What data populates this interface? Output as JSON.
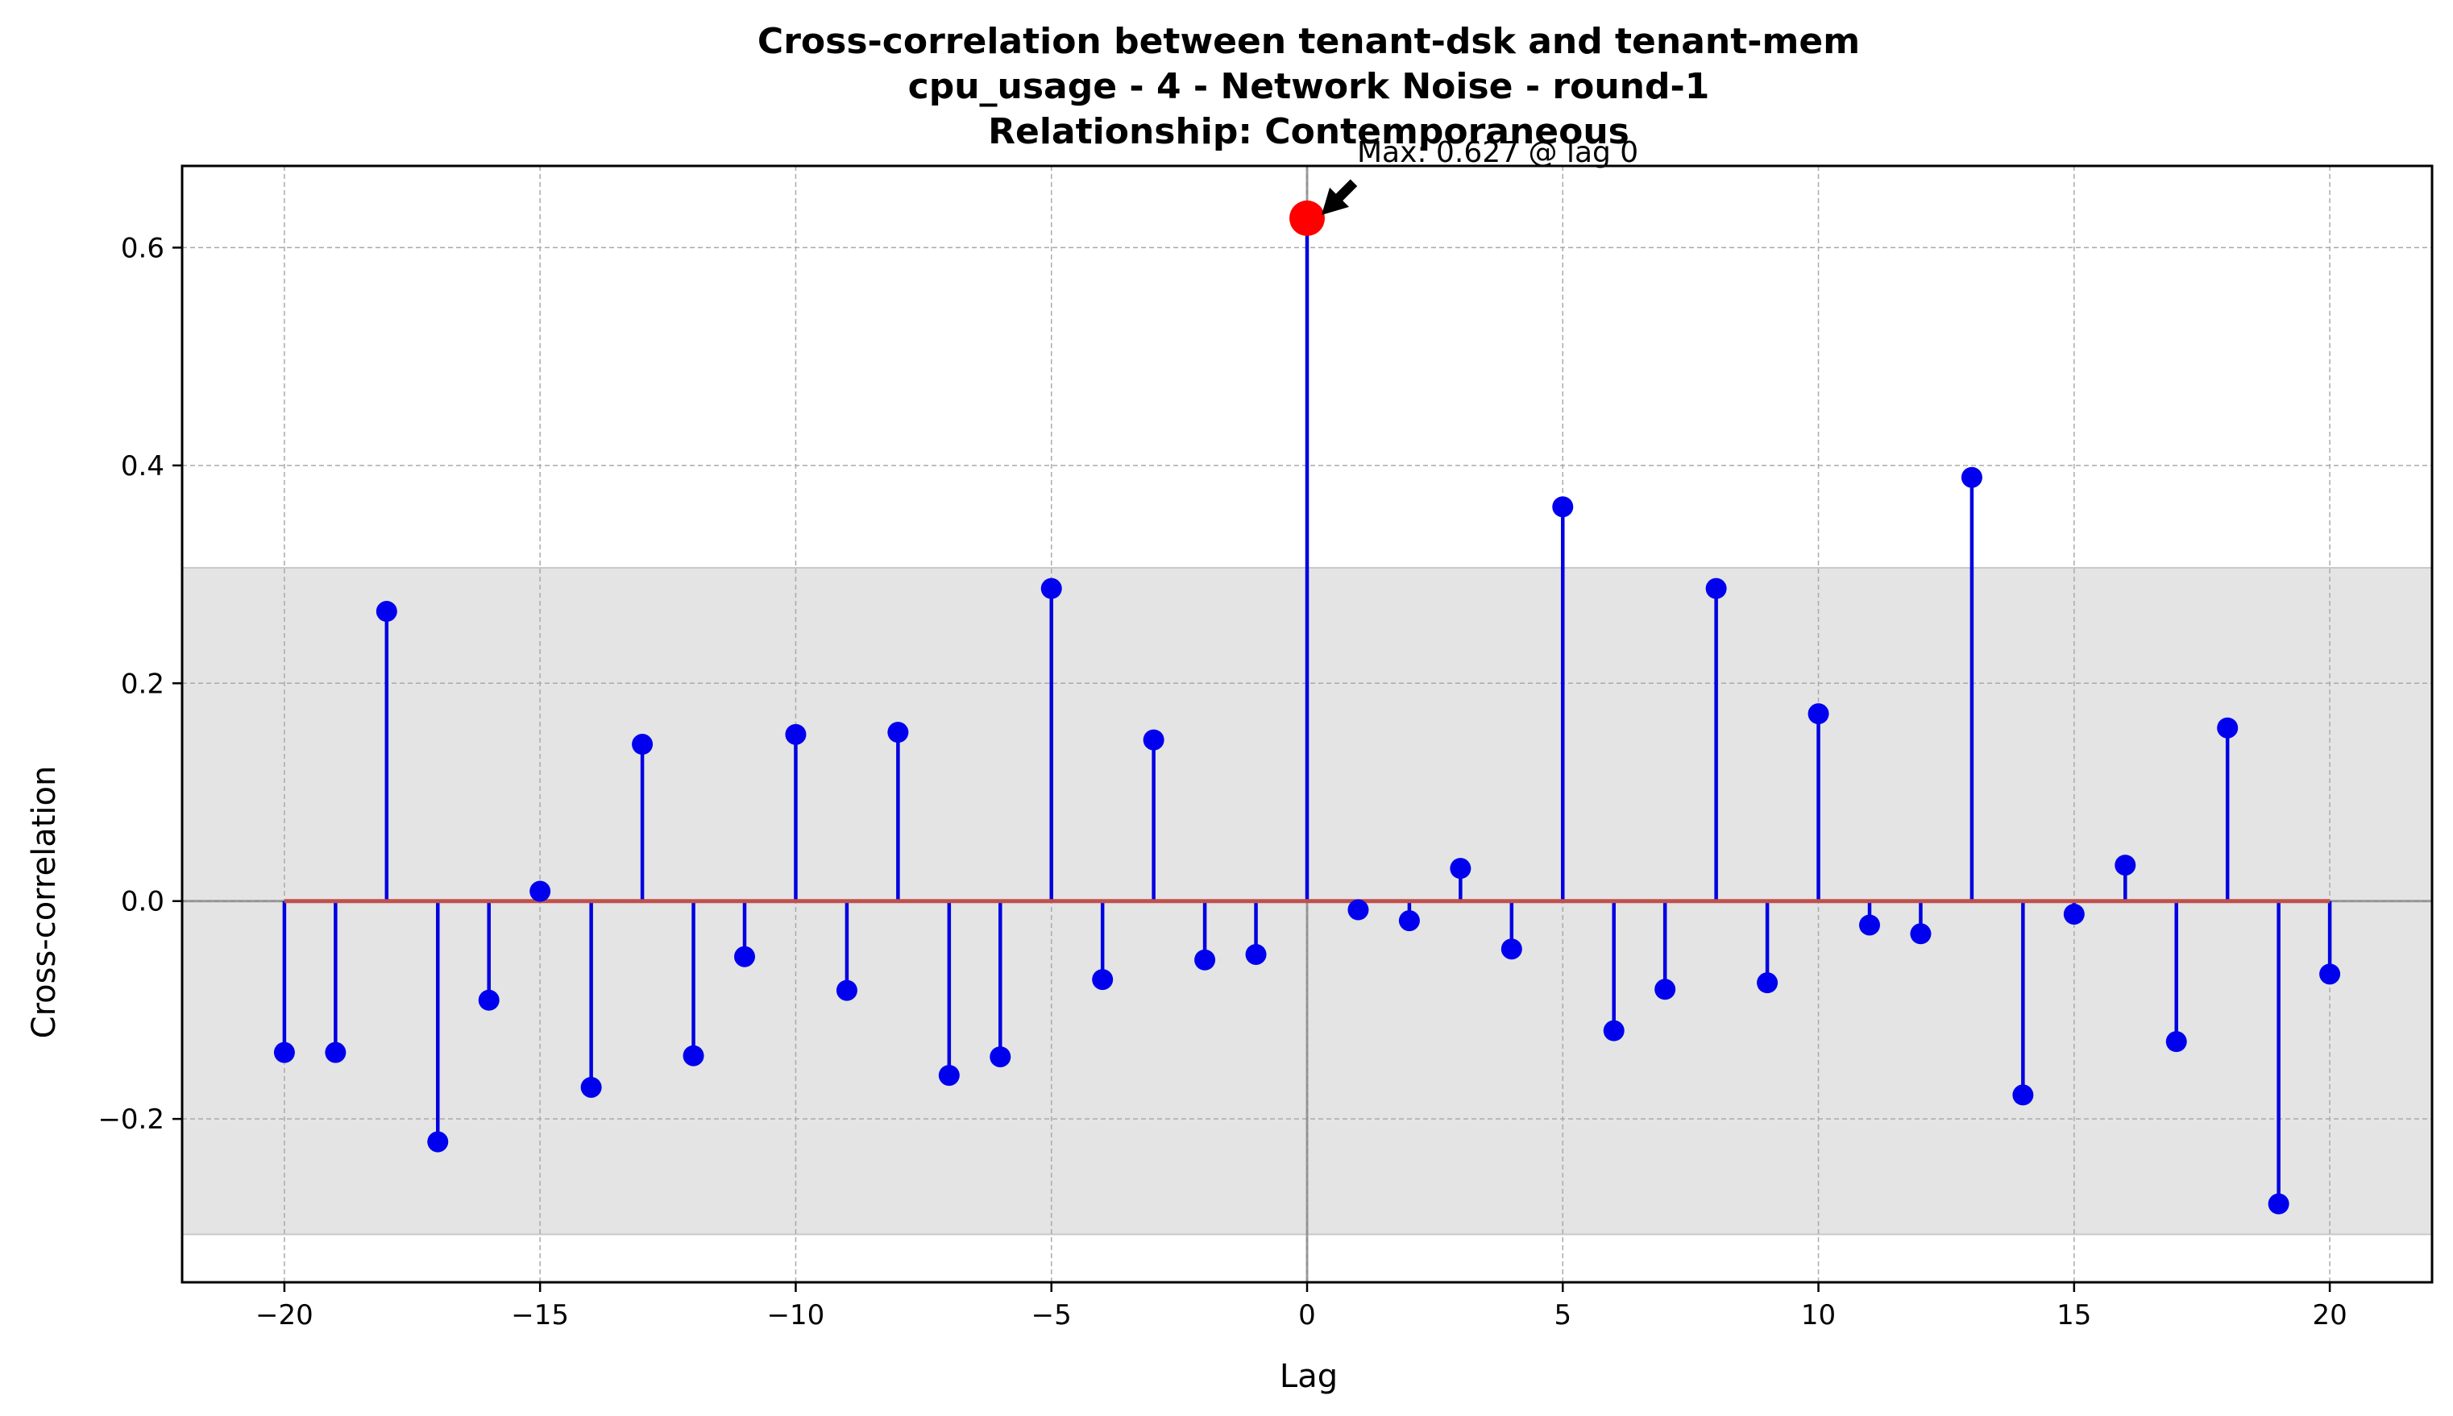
{
  "chart_data": {
    "type": "stem",
    "title": "Cross-correlation between tenant-dsk and tenant-mem",
    "subtitle": "cpu_usage - 4 - Network Noise - round-1",
    "relationship": "Relationship: Contemporaneous",
    "xlabel": "Lag",
    "ylabel": "Cross-correlation",
    "xlim": [
      -22,
      22
    ],
    "ylim": [
      -0.35,
      0.675
    ],
    "xticks": [
      -20,
      -15,
      -10,
      -5,
      0,
      5,
      10,
      15,
      20
    ],
    "xtick_labels": [
      "−20",
      "−15",
      "−10",
      "−5",
      "0",
      "5",
      "10",
      "15",
      "20"
    ],
    "yticks": [
      -0.2,
      0.0,
      0.2,
      0.4,
      0.6
    ],
    "ytick_labels": [
      "−0.2",
      "0.0",
      "0.2",
      "0.4",
      "0.6"
    ],
    "grid": true,
    "confidence_band": [
      -0.306,
      0.306
    ],
    "x": [
      -20,
      -19,
      -18,
      -17,
      -16,
      -15,
      -14,
      -13,
      -12,
      -11,
      -10,
      -9,
      -8,
      -7,
      -6,
      -5,
      -4,
      -3,
      -2,
      -1,
      0,
      1,
      2,
      3,
      4,
      5,
      6,
      7,
      8,
      9,
      10,
      11,
      12,
      13,
      14,
      15,
      16,
      17,
      18,
      19,
      20
    ],
    "values": [
      -0.139,
      -0.139,
      0.266,
      -0.221,
      -0.091,
      0.009,
      -0.171,
      0.144,
      -0.142,
      -0.051,
      0.153,
      -0.082,
      0.155,
      -0.16,
      -0.143,
      0.287,
      -0.072,
      0.148,
      -0.054,
      -0.049,
      0.627,
      -0.008,
      -0.018,
      0.03,
      -0.044,
      0.362,
      -0.119,
      -0.081,
      0.287,
      -0.075,
      0.172,
      -0.022,
      -0.03,
      0.389,
      -0.178,
      -0.012,
      0.033,
      -0.129,
      0.159,
      -0.278,
      -0.067
    ],
    "max": {
      "lag": 0,
      "value": 0.627,
      "label": "Max: 0.627 @ lag 0"
    },
    "colors": {
      "stem": "#0000e0",
      "marker": "#0000ee",
      "baseline": "#c0504d",
      "max_marker": "#ff0000",
      "band": "#e4e4e4",
      "zero_lines": "#888888",
      "grid": "#aaaaaa"
    }
  }
}
